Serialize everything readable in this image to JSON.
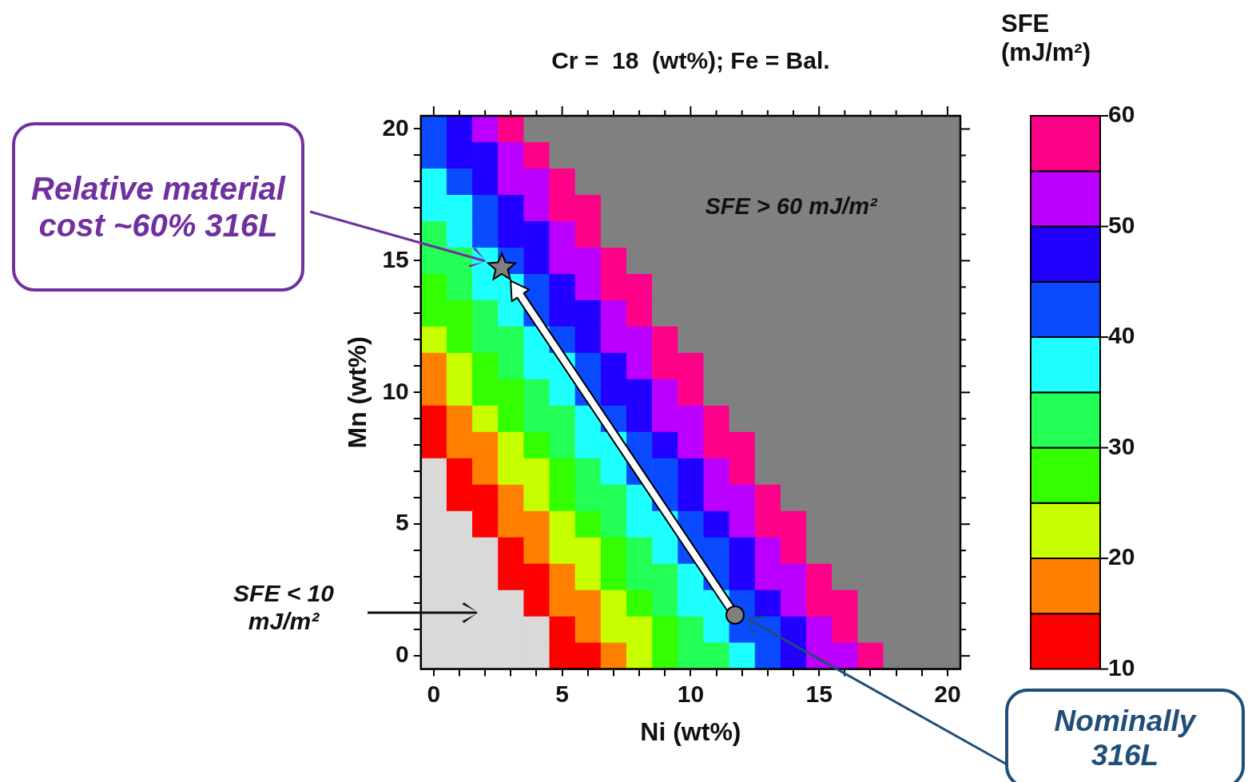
{
  "chart_data": {
    "type": "heatmap",
    "title": "Cr =  18  (wt%); Fe = Bal.",
    "xlabel": "Ni (wt%)",
    "ylabel": "Mn (wt%)",
    "clabel": "SFE (mJ/m²)",
    "categories": [
      "0",
      null,
      null,
      null,
      null,
      "5",
      null,
      null,
      null,
      null,
      "10",
      null,
      null,
      null,
      null,
      "15",
      null,
      null,
      null,
      null,
      "20"
    ],
    "y_categories": [
      "20",
      null,
      null,
      null,
      null,
      "15",
      null,
      null,
      null,
      null,
      "10",
      null,
      null,
      null,
      null,
      "5",
      null,
      null,
      null,
      null,
      "0"
    ],
    "clim": [
      10,
      60
    ],
    "cticks": [
      10,
      20,
      30,
      40,
      50,
      60
    ],
    "cells": [
      [
        42.5,
        47.5,
        52.5,
        57.5,
        null,
        null,
        null,
        null,
        null,
        null,
        null,
        null,
        null,
        null,
        null,
        null,
        null,
        null,
        null,
        null,
        null
      ],
      [
        42.5,
        47.5,
        47.5,
        52.5,
        57.5,
        null,
        null,
        null,
        null,
        null,
        null,
        null,
        null,
        null,
        null,
        null,
        null,
        null,
        null,
        null,
        null
      ],
      [
        37.5,
        42.5,
        47.5,
        52.5,
        52.5,
        57.5,
        null,
        null,
        null,
        null,
        null,
        null,
        null,
        null,
        null,
        null,
        null,
        null,
        null,
        null,
        null
      ],
      [
        37.5,
        37.5,
        42.5,
        47.5,
        52.5,
        57.5,
        57.5,
        null,
        null,
        null,
        null,
        null,
        null,
        null,
        null,
        null,
        null,
        null,
        null,
        null,
        null
      ],
      [
        32.5,
        37.5,
        42.5,
        47.5,
        47.5,
        52.5,
        57.5,
        null,
        null,
        null,
        null,
        null,
        null,
        null,
        null,
        null,
        null,
        null,
        null,
        null,
        null
      ],
      [
        32.5,
        32.5,
        37.5,
        42.5,
        47.5,
        52.5,
        52.5,
        57.5,
        null,
        null,
        null,
        null,
        null,
        null,
        null,
        null,
        null,
        null,
        null,
        null,
        null
      ],
      [
        27.5,
        32.5,
        37.5,
        37.5,
        42.5,
        47.5,
        52.5,
        57.5,
        57.5,
        null,
        null,
        null,
        null,
        null,
        null,
        null,
        null,
        null,
        null,
        null,
        null
      ],
      [
        27.5,
        27.5,
        32.5,
        37.5,
        42.5,
        47.5,
        47.5,
        52.5,
        57.5,
        null,
        null,
        null,
        null,
        null,
        null,
        null,
        null,
        null,
        null,
        null,
        null
      ],
      [
        22.5,
        27.5,
        32.5,
        32.5,
        37.5,
        42.5,
        47.5,
        52.5,
        52.5,
        57.5,
        null,
        null,
        null,
        null,
        null,
        null,
        null,
        null,
        null,
        null,
        null
      ],
      [
        17.5,
        22.5,
        27.5,
        32.5,
        37.5,
        37.5,
        42.5,
        47.5,
        52.5,
        57.5,
        57.5,
        null,
        null,
        null,
        null,
        null,
        null,
        null,
        null,
        null,
        null
      ],
      [
        17.5,
        22.5,
        27.5,
        27.5,
        32.5,
        37.5,
        42.5,
        47.5,
        47.5,
        52.5,
        57.5,
        null,
        null,
        null,
        null,
        null,
        null,
        null,
        null,
        null,
        null
      ],
      [
        12.5,
        17.5,
        22.5,
        27.5,
        32.5,
        32.5,
        37.5,
        42.5,
        47.5,
        52.5,
        52.5,
        57.5,
        null,
        null,
        null,
        null,
        null,
        null,
        null,
        null,
        null
      ],
      [
        12.5,
        17.5,
        17.5,
        22.5,
        27.5,
        32.5,
        37.5,
        37.5,
        42.5,
        47.5,
        52.5,
        57.5,
        57.5,
        null,
        null,
        null,
        null,
        null,
        null,
        null,
        null
      ],
      [
        null,
        12.5,
        17.5,
        22.5,
        22.5,
        27.5,
        32.5,
        37.5,
        42.5,
        42.5,
        47.5,
        52.5,
        57.5,
        null,
        null,
        null,
        null,
        null,
        null,
        null,
        null
      ],
      [
        null,
        12.5,
        12.5,
        17.5,
        22.5,
        27.5,
        32.5,
        32.5,
        37.5,
        42.5,
        47.5,
        52.5,
        52.5,
        57.5,
        null,
        null,
        null,
        null,
        null,
        null,
        null
      ],
      [
        null,
        null,
        12.5,
        17.5,
        17.5,
        22.5,
        27.5,
        32.5,
        37.5,
        37.5,
        42.5,
        47.5,
        52.5,
        57.5,
        57.5,
        null,
        null,
        null,
        null,
        null,
        null
      ],
      [
        null,
        null,
        null,
        12.5,
        17.5,
        22.5,
        22.5,
        27.5,
        32.5,
        37.5,
        42.5,
        42.5,
        47.5,
        52.5,
        57.5,
        null,
        null,
        null,
        null,
        null,
        null
      ],
      [
        null,
        null,
        null,
        12.5,
        12.5,
        17.5,
        22.5,
        27.5,
        32.5,
        32.5,
        37.5,
        42.5,
        47.5,
        52.5,
        52.5,
        57.5,
        null,
        null,
        null,
        null,
        null
      ],
      [
        null,
        null,
        null,
        null,
        12.5,
        17.5,
        17.5,
        22.5,
        27.5,
        32.5,
        37.5,
        37.5,
        42.5,
        47.5,
        52.5,
        57.5,
        57.5,
        null,
        null,
        null,
        null
      ],
      [
        null,
        null,
        null,
        null,
        null,
        12.5,
        17.5,
        22.5,
        22.5,
        27.5,
        32.5,
        37.5,
        42.5,
        42.5,
        47.5,
        52.5,
        57.5,
        null,
        null,
        null,
        null
      ],
      [
        null,
        null,
        null,
        null,
        null,
        12.5,
        12.5,
        17.5,
        22.5,
        27.5,
        32.5,
        32.5,
        37.5,
        42.5,
        47.5,
        52.5,
        52.5,
        57.5,
        null,
        null,
        null
      ]
    ],
    "annotations": [
      "SFE > 60 mJ/m²",
      "SFE < 10 mJ/m²",
      "Relative material cost ~60% 316L",
      "Nominally 316L"
    ]
  }
}
